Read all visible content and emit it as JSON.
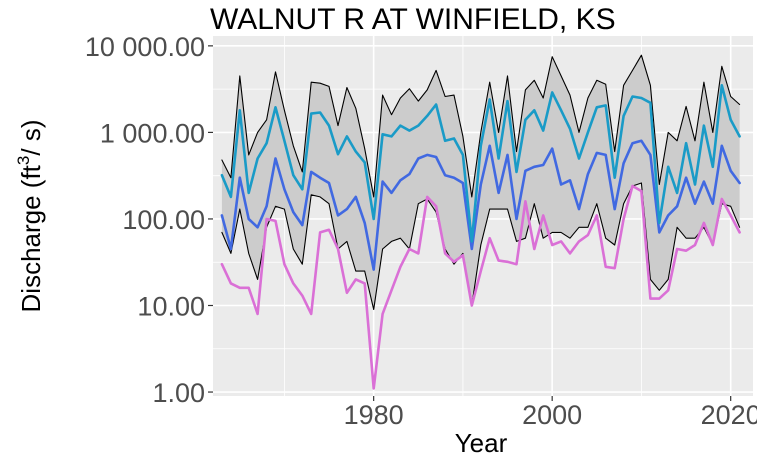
{
  "chart_data": {
    "type": "line",
    "title": "WALNUT R AT WINFIELD, KS",
    "xlabel": "Year",
    "ylabel": "Discharge (ft³/s)",
    "ylabel_base": "Discharge (ft",
    "ylabel_sup": "3",
    "ylabel_tail": "/ s)",
    "yscale": "log",
    "xlim": [
      1962,
      2022.5
    ],
    "ylim": [
      0.9,
      13000
    ],
    "x_ticks": [
      1980,
      2000,
      2020
    ],
    "x_tick_labels": [
      "1980",
      "2000",
      "2020"
    ],
    "y_ticks": [
      1,
      10,
      100,
      1000,
      10000
    ],
    "y_tick_labels": [
      "1.00",
      "10.00",
      "100.00",
      "1 000.00",
      "10 000.00"
    ],
    "grid": true,
    "legend": "none",
    "colors": {
      "panel": "#ebebeb",
      "grid": "#ffffff",
      "band": "#cccccc",
      "band_edge": "#000000",
      "upper": "#1a9bc7",
      "middle": "#4169e1",
      "lower": "#da70d6"
    },
    "x": [
      1963,
      1964,
      1965,
      1966,
      1967,
      1968,
      1969,
      1970,
      1971,
      1972,
      1973,
      1974,
      1975,
      1976,
      1977,
      1978,
      1979,
      1980,
      1981,
      1982,
      1983,
      1984,
      1985,
      1986,
      1987,
      1988,
      1989,
      1990,
      1991,
      1992,
      1993,
      1994,
      1995,
      1996,
      1997,
      1998,
      1999,
      2000,
      2001,
      2002,
      2003,
      2004,
      2005,
      2006,
      2007,
      2008,
      2009,
      2010,
      2011,
      2012,
      2013,
      2014,
      2015,
      2016,
      2017,
      2018,
      2019,
      2020,
      2021
    ],
    "series": [
      {
        "role": "band_upper",
        "values": [
          480,
          300,
          4500,
          550,
          1000,
          1400,
          5000,
          1800,
          700,
          350,
          3800,
          3700,
          3400,
          1200,
          3300,
          1900,
          650,
          180,
          2700,
          1600,
          2500,
          3200,
          2300,
          3100,
          5200,
          2600,
          2700,
          900,
          180,
          1000,
          3800,
          1000,
          4500,
          600,
          3100,
          4000,
          2500,
          7500,
          4500,
          2700,
          1000,
          2500,
          4000,
          3600,
          600,
          3500,
          5200,
          7800,
          3500,
          250,
          1000,
          800,
          2000,
          800,
          3800,
          1000,
          5800,
          2600,
          2100
        ]
      },
      {
        "role": "band_lower",
        "values": [
          70,
          40,
          130,
          40,
          20,
          80,
          140,
          130,
          45,
          30,
          190,
          180,
          150,
          45,
          55,
          25,
          25,
          9,
          45,
          55,
          60,
          45,
          150,
          170,
          120,
          45,
          30,
          40,
          10,
          50,
          130,
          130,
          130,
          55,
          60,
          150,
          60,
          70,
          70,
          60,
          80,
          80,
          150,
          60,
          50,
          150,
          240,
          260,
          20,
          15,
          20,
          80,
          60,
          60,
          80,
          50,
          150,
          140,
          80
        ]
      },
      {
        "role": "upper",
        "values": [
          320,
          180,
          1800,
          200,
          500,
          750,
          1950,
          800,
          320,
          220,
          1650,
          1700,
          1200,
          560,
          900,
          600,
          450,
          100,
          950,
          900,
          1200,
          1050,
          1200,
          1550,
          2100,
          800,
          850,
          550,
          55,
          700,
          2400,
          500,
          2300,
          350,
          1400,
          1800,
          1050,
          2900,
          1800,
          1100,
          500,
          1000,
          1950,
          2050,
          300,
          1550,
          2600,
          2500,
          2200,
          90,
          400,
          200,
          750,
          250,
          1200,
          400,
          3500,
          1400,
          900
        ]
      },
      {
        "role": "middle",
        "values": [
          110,
          45,
          300,
          100,
          80,
          140,
          500,
          220,
          120,
          85,
          350,
          300,
          260,
          110,
          130,
          180,
          90,
          26,
          270,
          200,
          280,
          330,
          500,
          550,
          520,
          320,
          300,
          260,
          45,
          250,
          700,
          200,
          550,
          100,
          360,
          400,
          420,
          650,
          250,
          280,
          130,
          330,
          580,
          550,
          130,
          440,
          750,
          800,
          550,
          70,
          110,
          140,
          300,
          150,
          270,
          150,
          700,
          360,
          260
        ]
      },
      {
        "role": "lower",
        "values": [
          30,
          18,
          16,
          16,
          8,
          100,
          95,
          30,
          18,
          13,
          8,
          70,
          75,
          45,
          14,
          20,
          18,
          1.1,
          8,
          15,
          28,
          45,
          40,
          180,
          140,
          40,
          32,
          38,
          10,
          25,
          60,
          33,
          32,
          30,
          160,
          45,
          110,
          50,
          55,
          40,
          55,
          65,
          110,
          28,
          27,
          100,
          240,
          210,
          12,
          12,
          15,
          45,
          43,
          50,
          90,
          50,
          170,
          110,
          70
        ]
      }
    ]
  }
}
